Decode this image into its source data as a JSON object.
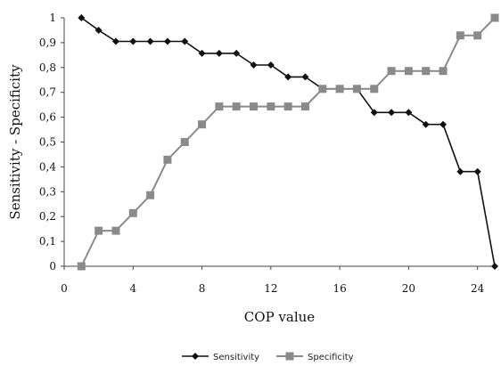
{
  "chart_data": {
    "type": "line",
    "xlabel": "COP value",
    "ylabel": "Sensitivity - Specificity",
    "xlim": [
      0,
      25
    ],
    "ylim": [
      0,
      1
    ],
    "x_ticks": [
      0,
      4,
      8,
      12,
      16,
      20,
      24
    ],
    "x_tick_labels": [
      "0",
      "4",
      "8",
      "12",
      "16",
      "20",
      "24"
    ],
    "y_ticks": [
      0,
      0.1,
      0.2,
      0.3,
      0.4,
      0.5,
      0.6,
      0.7,
      0.8,
      0.9,
      1
    ],
    "y_tick_labels": [
      "0",
      "0,1",
      "0,2",
      "0,3",
      "0,4",
      "0,5",
      "0,6",
      "0,7",
      "0,8",
      "0,9",
      "1"
    ],
    "grid": false,
    "legend_position": "bottom",
    "x": [
      1,
      2,
      3,
      4,
      5,
      6,
      7,
      8,
      9,
      10,
      11,
      12,
      13,
      14,
      15,
      16,
      17,
      18,
      19,
      20,
      21,
      22,
      23,
      24,
      25
    ],
    "series": [
      {
        "name": "Sensitivity",
        "color": "#111111",
        "marker": "diamond",
        "values": [
          1.0,
          0.95,
          0.905,
          0.905,
          0.905,
          0.905,
          0.905,
          0.857,
          0.857,
          0.857,
          0.81,
          0.81,
          0.762,
          0.762,
          0.714,
          0.714,
          0.714,
          0.619,
          0.619,
          0.619,
          0.571,
          0.571,
          0.381,
          0.381,
          0.0
        ]
      },
      {
        "name": "Specificity",
        "color": "#8a8a8a",
        "marker": "square",
        "values": [
          0.0,
          0.143,
          0.143,
          0.214,
          0.286,
          0.429,
          0.5,
          0.571,
          0.643,
          0.643,
          0.643,
          0.643,
          0.643,
          0.643,
          0.714,
          0.714,
          0.714,
          0.714,
          0.786,
          0.786,
          0.786,
          0.786,
          0.929,
          0.929,
          1.0
        ]
      }
    ]
  }
}
